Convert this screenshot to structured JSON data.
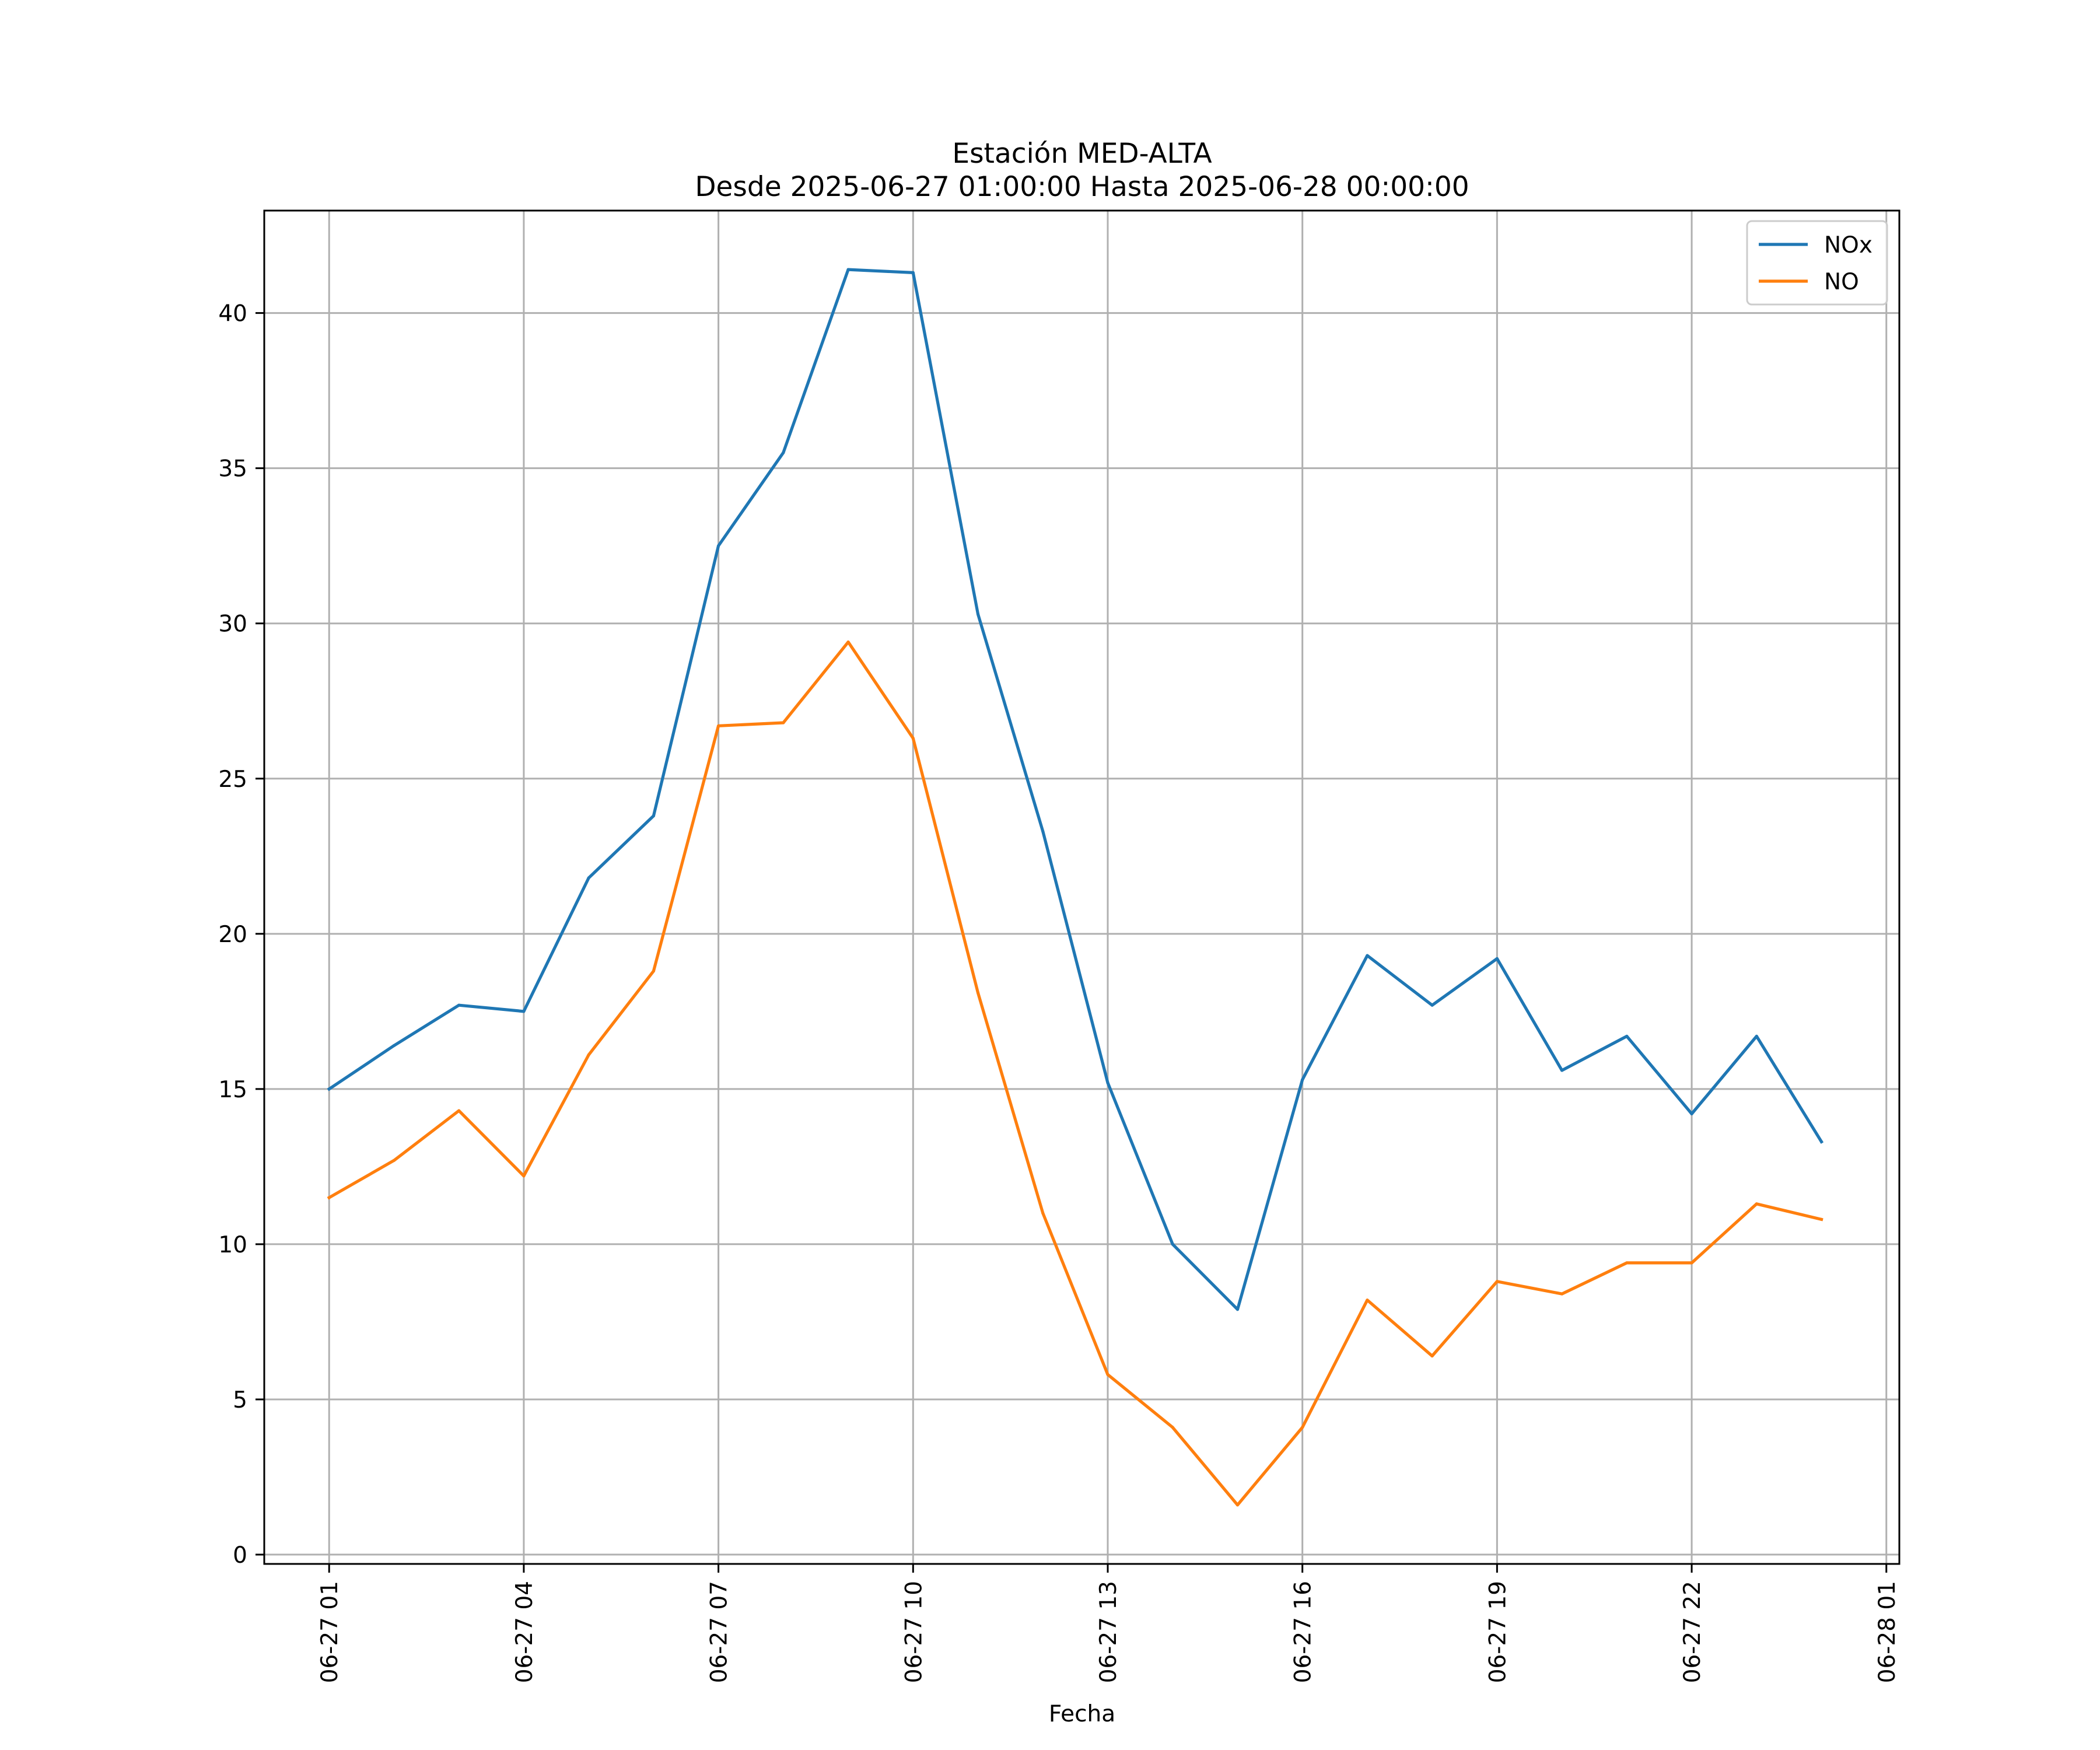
{
  "chart_data": {
    "type": "line",
    "title": "Estación MED-ALTA",
    "subtitle": "Desde 2025-06-27 01:00:00 Hasta 2025-06-28 00:00:00",
    "xlabel": "Fecha",
    "ylabel": "",
    "x": [
      "2025-06-27 01:00",
      "2025-06-27 02:00",
      "2025-06-27 03:00",
      "2025-06-27 04:00",
      "2025-06-27 05:00",
      "2025-06-27 06:00",
      "2025-06-27 07:00",
      "2025-06-27 08:00",
      "2025-06-27 09:00",
      "2025-06-27 10:00",
      "2025-06-27 11:00",
      "2025-06-27 12:00",
      "2025-06-27 13:00",
      "2025-06-27 14:00",
      "2025-06-27 15:00",
      "2025-06-27 16:00",
      "2025-06-27 17:00",
      "2025-06-27 18:00",
      "2025-06-27 19:00",
      "2025-06-27 20:00",
      "2025-06-27 21:00",
      "2025-06-27 22:00",
      "2025-06-27 23:00",
      "2025-06-28 00:00"
    ],
    "x_range": [
      "2025-06-27 00:00",
      "2025-06-28 01:12"
    ],
    "xticks": [
      "06-27 01",
      "06-27 04",
      "06-27 07",
      "06-27 10",
      "06-27 13",
      "06-27 16",
      "06-27 19",
      "06-27 22",
      "06-28 01"
    ],
    "xtick_values": [
      "2025-06-27 01:00",
      "2025-06-27 04:00",
      "2025-06-27 07:00",
      "2025-06-27 10:00",
      "2025-06-27 13:00",
      "2025-06-27 16:00",
      "2025-06-27 19:00",
      "2025-06-27 22:00",
      "2025-06-28 01:00"
    ],
    "yticks": [
      0,
      5,
      10,
      15,
      20,
      25,
      30,
      35,
      40
    ],
    "ylim": [
      -0.3,
      43.3
    ],
    "grid": true,
    "legend_position": "top-right",
    "series": [
      {
        "name": "NOx",
        "color": "#1f77b4",
        "values": [
          15.0,
          16.4,
          17.7,
          17.5,
          21.8,
          23.8,
          32.5,
          35.5,
          41.4,
          41.3,
          30.3,
          23.3,
          15.2,
          10.0,
          7.9,
          15.3,
          19.3,
          17.7,
          19.2,
          15.6,
          16.7,
          14.2,
          16.7,
          13.3
        ]
      },
      {
        "name": "NO",
        "color": "#ff7f0e",
        "values": [
          11.5,
          12.7,
          14.3,
          12.2,
          16.1,
          18.8,
          26.7,
          26.8,
          29.4,
          26.3,
          18.1,
          11.0,
          5.8,
          4.1,
          1.6,
          4.1,
          8.2,
          6.4,
          8.8,
          8.4,
          9.4,
          9.4,
          11.3,
          10.8
        ]
      }
    ]
  }
}
